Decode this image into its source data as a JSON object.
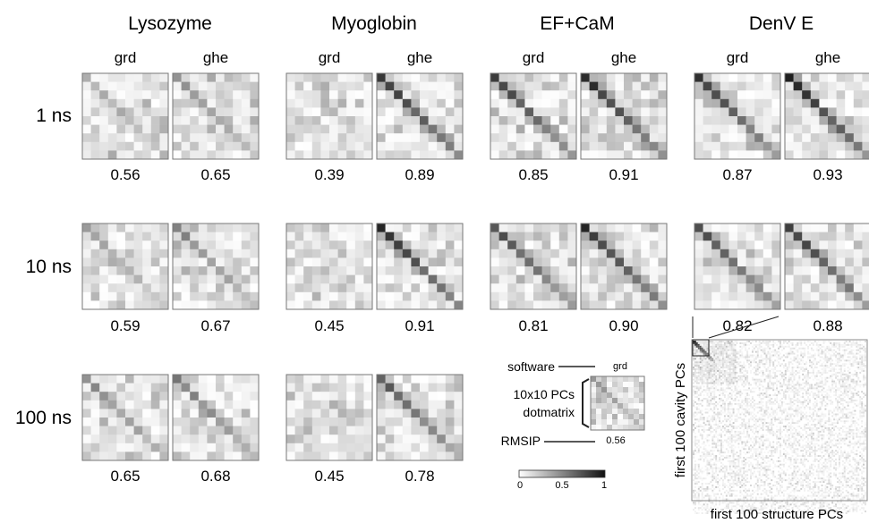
{
  "proteins": [
    "Lysozyme",
    "Myoglobin",
    "EF+CaM",
    "DenV E"
  ],
  "software": [
    "grd",
    "ghe"
  ],
  "times": [
    "1 ns",
    "10 ns",
    "100 ns"
  ],
  "rmsip": [
    [
      [
        0.56,
        0.65
      ],
      [
        0.39,
        0.89
      ],
      [
        0.85,
        0.91
      ],
      [
        0.87,
        0.93
      ]
    ],
    [
      [
        0.59,
        0.67
      ],
      [
        0.45,
        0.91
      ],
      [
        0.81,
        0.9
      ],
      [
        0.82,
        0.88
      ]
    ],
    [
      [
        0.65,
        0.68
      ],
      [
        0.45,
        0.78
      ],
      null,
      null
    ]
  ],
  "legend": {
    "software_label": "software",
    "software_value": "grd",
    "matrix_label_line1": "10x10 PCs",
    "matrix_label_line2": "dotmatrix",
    "rmsip_label": "RMSIP",
    "rmsip_value": "0.56"
  },
  "colorbar": {
    "min_label": "0",
    "mid_label": "0.5",
    "max_label": "1"
  },
  "zoom": {
    "ylabel": "first 100 cavity PCs",
    "xlabel": "first 100 structure PCs"
  },
  "colors": {
    "high": "#111111",
    "low": "#ffffff",
    "frame": "#777777"
  }
}
